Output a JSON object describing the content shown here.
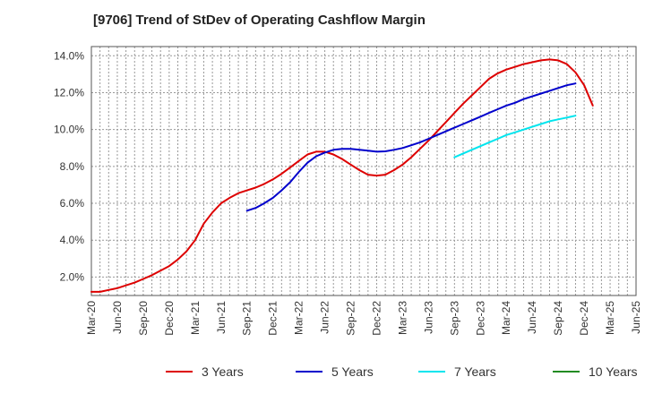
{
  "chart_data": {
    "type": "line",
    "title": "[9706]  Trend of StDev of Operating Cashflow Margin",
    "xlabel": "",
    "ylabel": "",
    "ylim": [
      1.0,
      14.5
    ],
    "y_ticks": [
      2.0,
      4.0,
      6.0,
      8.0,
      10.0,
      12.0,
      14.0
    ],
    "y_tick_labels": [
      "2.0%",
      "4.0%",
      "6.0%",
      "8.0%",
      "10.0%",
      "12.0%",
      "14.0%"
    ],
    "x_tick_labels": [
      "Mar-20",
      "Jun-20",
      "Sep-20",
      "Dec-20",
      "Mar-21",
      "Jun-21",
      "Sep-21",
      "Dec-21",
      "Mar-22",
      "Jun-22",
      "Sep-22",
      "Dec-22",
      "Mar-23",
      "Jun-23",
      "Sep-23",
      "Dec-23",
      "Mar-24",
      "Jun-24",
      "Sep-24",
      "Dec-24",
      "Mar-25",
      "Jun-25"
    ],
    "x_unit": "month index from Mar-20",
    "grid": true,
    "legend_position": "bottom",
    "series": [
      {
        "name": "3 Years",
        "color": "#dd0000",
        "points": [
          [
            0,
            1.2
          ],
          [
            1,
            1.2
          ],
          [
            2,
            1.3
          ],
          [
            3,
            1.4
          ],
          [
            4,
            1.55
          ],
          [
            5,
            1.7
          ],
          [
            6,
            1.9
          ],
          [
            7,
            2.1
          ],
          [
            8,
            2.35
          ],
          [
            9,
            2.6
          ],
          [
            10,
            2.95
          ],
          [
            11,
            3.4
          ],
          [
            12,
            4.0
          ],
          [
            13,
            4.9
          ],
          [
            14,
            5.5
          ],
          [
            15,
            6.0
          ],
          [
            16,
            6.3
          ],
          [
            17,
            6.55
          ],
          [
            18,
            6.7
          ],
          [
            19,
            6.85
          ],
          [
            20,
            7.05
          ],
          [
            21,
            7.3
          ],
          [
            22,
            7.6
          ],
          [
            23,
            7.95
          ],
          [
            24,
            8.3
          ],
          [
            25,
            8.65
          ],
          [
            26,
            8.8
          ],
          [
            27,
            8.8
          ],
          [
            28,
            8.65
          ],
          [
            29,
            8.4
          ],
          [
            30,
            8.1
          ],
          [
            31,
            7.8
          ],
          [
            32,
            7.55
          ],
          [
            33,
            7.5
          ],
          [
            34,
            7.55
          ],
          [
            35,
            7.8
          ],
          [
            36,
            8.1
          ],
          [
            37,
            8.5
          ],
          [
            38,
            8.95
          ],
          [
            39,
            9.4
          ],
          [
            40,
            9.9
          ],
          [
            41,
            10.4
          ],
          [
            42,
            10.9
          ],
          [
            43,
            11.4
          ],
          [
            44,
            11.85
          ],
          [
            45,
            12.3
          ],
          [
            46,
            12.75
          ],
          [
            47,
            13.05
          ],
          [
            48,
            13.25
          ],
          [
            49,
            13.4
          ],
          [
            50,
            13.55
          ],
          [
            51,
            13.65
          ],
          [
            52,
            13.75
          ],
          [
            53,
            13.8
          ],
          [
            54,
            13.75
          ],
          [
            55,
            13.55
          ],
          [
            56,
            13.1
          ],
          [
            57,
            12.4
          ],
          [
            58,
            11.3
          ]
        ]
      },
      {
        "name": "5 Years",
        "color": "#0000cc",
        "points": [
          [
            18,
            5.6
          ],
          [
            19,
            5.75
          ],
          [
            20,
            6.0
          ],
          [
            21,
            6.3
          ],
          [
            22,
            6.7
          ],
          [
            23,
            7.15
          ],
          [
            24,
            7.7
          ],
          [
            25,
            8.2
          ],
          [
            26,
            8.55
          ],
          [
            27,
            8.75
          ],
          [
            28,
            8.9
          ],
          [
            29,
            8.95
          ],
          [
            30,
            8.95
          ],
          [
            31,
            8.9
          ],
          [
            32,
            8.85
          ],
          [
            33,
            8.8
          ],
          [
            34,
            8.82
          ],
          [
            35,
            8.9
          ],
          [
            36,
            9.0
          ],
          [
            37,
            9.15
          ],
          [
            38,
            9.3
          ],
          [
            39,
            9.5
          ],
          [
            40,
            9.7
          ],
          [
            41,
            9.9
          ],
          [
            42,
            10.1
          ],
          [
            43,
            10.3
          ],
          [
            44,
            10.5
          ],
          [
            45,
            10.7
          ],
          [
            46,
            10.9
          ],
          [
            47,
            11.1
          ],
          [
            48,
            11.3
          ],
          [
            49,
            11.45
          ],
          [
            50,
            11.65
          ],
          [
            51,
            11.8
          ],
          [
            52,
            11.95
          ],
          [
            53,
            12.1
          ],
          [
            54,
            12.25
          ],
          [
            55,
            12.4
          ],
          [
            56,
            12.5
          ]
        ]
      },
      {
        "name": "7 Years",
        "color": "#00e5ee",
        "points": [
          [
            42,
            8.5
          ],
          [
            43,
            8.7
          ],
          [
            44,
            8.9
          ],
          [
            45,
            9.1
          ],
          [
            46,
            9.3
          ],
          [
            47,
            9.5
          ],
          [
            48,
            9.7
          ],
          [
            49,
            9.85
          ],
          [
            50,
            10.0
          ],
          [
            51,
            10.15
          ],
          [
            52,
            10.3
          ],
          [
            53,
            10.45
          ],
          [
            54,
            10.55
          ],
          [
            55,
            10.65
          ],
          [
            56,
            10.75
          ]
        ]
      },
      {
        "name": "10 Years",
        "color": "#228b22",
        "points": []
      }
    ]
  }
}
